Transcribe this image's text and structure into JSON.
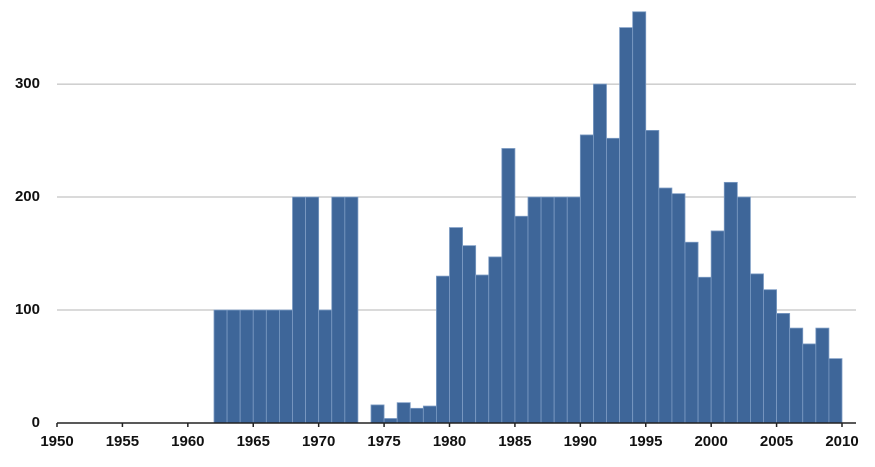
{
  "chart_data": {
    "type": "histogram",
    "bins": [
      1962,
      1963,
      1964,
      1965,
      1966,
      1967,
      1968,
      1969,
      1970,
      1971,
      1972,
      1973,
      1974,
      1975,
      1976,
      1977,
      1978,
      1979,
      1980,
      1981,
      1982,
      1983,
      1984,
      1985,
      1986,
      1987,
      1988,
      1989,
      1990,
      1991,
      1992,
      1993,
      1994,
      1995,
      1996,
      1997,
      1998,
      1999,
      2000,
      2001,
      2002,
      2003,
      2004,
      2005,
      2006,
      2007,
      2008,
      2009,
      2010
    ],
    "values": [
      100,
      100,
      100,
      100,
      100,
      100,
      200,
      200,
      100,
      200,
      200,
      null,
      16,
      4,
      18,
      13,
      15,
      130,
      173,
      157,
      131,
      147,
      243,
      183,
      200,
      200,
      200,
      200,
      255,
      300,
      252,
      350,
      364,
      259,
      208,
      203,
      160,
      129,
      170,
      213,
      200,
      132,
      118,
      97,
      84,
      70,
      84,
      57
    ],
    "color": "#3e6699",
    "xlim": [
      1950,
      2010
    ],
    "xticks": [
      1950,
      1955,
      1960,
      1965,
      1970,
      1975,
      1980,
      1985,
      1990,
      1995,
      2000,
      2005,
      2010
    ],
    "ylim": [
      0,
      370
    ],
    "yticks": [
      0,
      100,
      200,
      300
    ],
    "grid": true
  }
}
